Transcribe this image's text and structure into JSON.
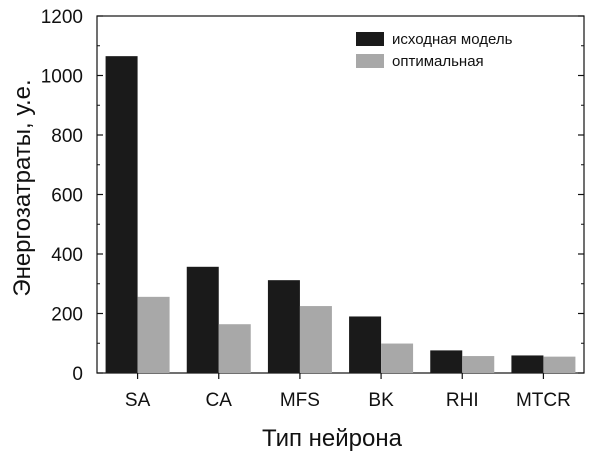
{
  "chart_data": {
    "type": "bar",
    "categories": [
      "SA",
      "CA",
      "MFS",
      "BK",
      "RHI",
      "MTCR"
    ],
    "series": [
      {
        "name": "исходная модель",
        "color": "#1a1a1a",
        "values": [
          1065,
          357,
          312,
          190,
          76,
          59
        ]
      },
      {
        "name": "оптимальная",
        "color": "#a8a8a8",
        "values": [
          256,
          164,
          225,
          99,
          57,
          55
        ]
      }
    ],
    "title": "",
    "xlabel": "Тип нейрона",
    "ylabel": "Энергозатраты, у.е.",
    "ylim": [
      0,
      1200
    ],
    "yticks": [
      0,
      200,
      400,
      600,
      800,
      1000,
      1200
    ],
    "legend_position": "top-right",
    "grid": false
  }
}
